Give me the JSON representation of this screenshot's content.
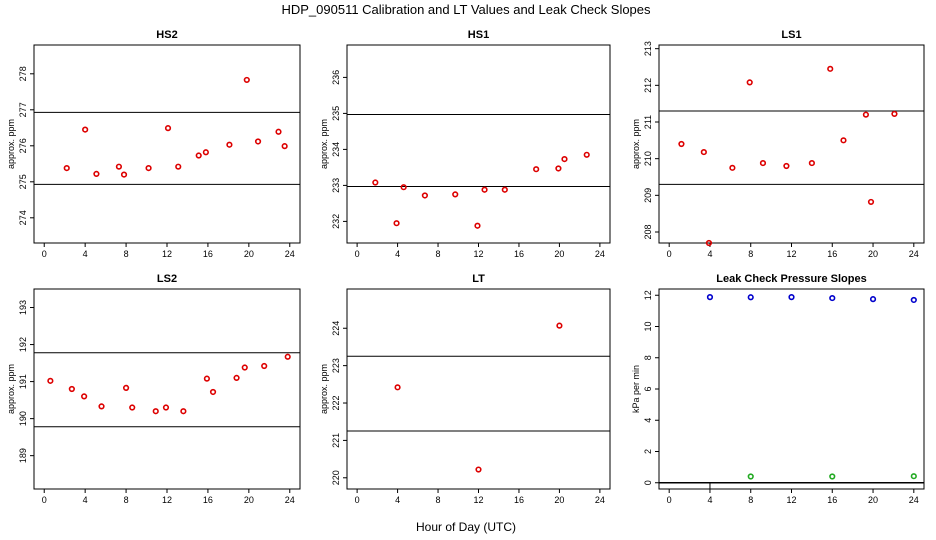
{
  "figure": {
    "title": "HDP_090511  Calibration and LT Values and Leak Check Slopes",
    "xlabel": "Hour of Day (UTC)"
  },
  "chart_data": [
    {
      "id": "hs2",
      "type": "scatter",
      "title": "HS2",
      "ylabel": "approx. ppm",
      "xlim": [
        -1,
        25
      ],
      "ylim": [
        273.3,
        278.8
      ],
      "xticks": [
        0,
        4,
        8,
        12,
        16,
        20,
        24
      ],
      "yticks": [
        274,
        275,
        276,
        277,
        278
      ],
      "hlines": [
        274.93,
        276.93
      ],
      "point_color": "#dd0000",
      "points": [
        [
          2.2,
          275.38
        ],
        [
          4.0,
          276.45
        ],
        [
          5.1,
          275.22
        ],
        [
          7.3,
          275.42
        ],
        [
          7.8,
          275.2
        ],
        [
          10.2,
          275.38
        ],
        [
          12.1,
          276.49
        ],
        [
          13.1,
          275.42
        ],
        [
          15.1,
          275.73
        ],
        [
          15.8,
          275.82
        ],
        [
          18.1,
          276.03
        ],
        [
          19.8,
          277.83
        ],
        [
          20.9,
          276.12
        ],
        [
          22.9,
          276.39
        ],
        [
          23.5,
          275.99
        ]
      ]
    },
    {
      "id": "hs1",
      "type": "scatter",
      "title": "HS1",
      "ylabel": "approx. ppm",
      "xlim": [
        -1,
        25
      ],
      "ylim": [
        231.4,
        236.9
      ],
      "xticks": [
        0,
        4,
        8,
        12,
        16,
        20,
        24
      ],
      "yticks": [
        232,
        233,
        234,
        235,
        236
      ],
      "hlines": [
        232.97,
        234.97
      ],
      "point_color": "#dd0000",
      "points": [
        [
          1.8,
          233.08
        ],
        [
          3.9,
          231.95
        ],
        [
          4.6,
          232.95
        ],
        [
          6.7,
          232.72
        ],
        [
          9.7,
          232.75
        ],
        [
          11.9,
          231.88
        ],
        [
          12.6,
          232.88
        ],
        [
          14.6,
          232.88
        ],
        [
          17.7,
          233.45
        ],
        [
          19.9,
          233.47
        ],
        [
          20.5,
          233.73
        ],
        [
          22.7,
          233.85
        ]
      ]
    },
    {
      "id": "ls1",
      "type": "scatter",
      "title": "LS1",
      "ylabel": "approx. ppm",
      "xlim": [
        -1,
        25
      ],
      "ylim": [
        207.7,
        213.1
      ],
      "xticks": [
        0,
        4,
        8,
        12,
        16,
        20,
        24
      ],
      "yticks": [
        208,
        209,
        210,
        211,
        212,
        213
      ],
      "hlines": [
        209.3,
        211.3
      ],
      "point_color": "#dd0000",
      "points": [
        [
          1.2,
          210.4
        ],
        [
          3.4,
          210.18
        ],
        [
          3.9,
          207.7
        ],
        [
          6.2,
          209.75
        ],
        [
          7.9,
          212.08
        ],
        [
          9.2,
          209.88
        ],
        [
          11.5,
          209.8
        ],
        [
          14.0,
          209.88
        ],
        [
          15.8,
          212.45
        ],
        [
          17.1,
          210.5
        ],
        [
          19.3,
          211.2
        ],
        [
          19.8,
          208.82
        ],
        [
          22.1,
          211.22
        ]
      ]
    },
    {
      "id": "ls2",
      "type": "scatter",
      "title": "LS2",
      "ylabel": "approx. ppm",
      "xlim": [
        -1,
        25
      ],
      "ylim": [
        188.1,
        193.5
      ],
      "xticks": [
        0,
        4,
        8,
        12,
        16,
        20,
        24
      ],
      "yticks": [
        189,
        190,
        191,
        192,
        193
      ],
      "hlines": [
        189.78,
        191.78
      ],
      "point_color": "#dd0000",
      "points": [
        [
          0.6,
          191.02
        ],
        [
          2.7,
          190.8
        ],
        [
          3.9,
          190.6
        ],
        [
          5.6,
          190.33
        ],
        [
          8.0,
          190.83
        ],
        [
          8.6,
          190.3
        ],
        [
          10.9,
          190.2
        ],
        [
          11.9,
          190.3
        ],
        [
          13.6,
          190.2
        ],
        [
          15.9,
          191.08
        ],
        [
          16.5,
          190.72
        ],
        [
          18.8,
          191.1
        ],
        [
          19.6,
          191.38
        ],
        [
          21.5,
          191.42
        ],
        [
          23.8,
          191.67
        ]
      ]
    },
    {
      "id": "lt",
      "type": "scatter",
      "title": "LT",
      "ylabel": "approx. ppm",
      "xlim": [
        -1,
        25
      ],
      "ylim": [
        219.7,
        225.05
      ],
      "xticks": [
        0,
        4,
        8,
        12,
        16,
        20,
        24
      ],
      "yticks": [
        220,
        221,
        222,
        223,
        224
      ],
      "hlines": [
        221.25,
        223.25
      ],
      "point_color": "#dd0000",
      "points": [
        [
          4.0,
          222.42
        ],
        [
          12.0,
          220.22
        ],
        [
          20.0,
          224.07
        ]
      ]
    },
    {
      "id": "leak",
      "type": "scatter",
      "title": "Leak Check Pressure Slopes",
      "ylabel": "kPa per min",
      "xlim": [
        -1,
        25
      ],
      "ylim": [
        -0.4,
        12.4
      ],
      "xticks": [
        0,
        4,
        8,
        12,
        16,
        20,
        24
      ],
      "yticks": [
        0,
        2,
        4,
        6,
        8,
        10,
        12
      ],
      "hlines": [
        0
      ],
      "hline_width": 1.6,
      "vline_at_x": 4,
      "series": [
        {
          "color": "#0000cc",
          "points": [
            [
              4,
              11.88
            ],
            [
              8,
              11.87
            ],
            [
              12,
              11.88
            ],
            [
              16,
              11.82
            ],
            [
              20,
              11.75
            ],
            [
              24,
              11.7
            ]
          ]
        },
        {
          "color": "#22aa22",
          "points": [
            [
              8,
              0.4
            ],
            [
              16,
              0.4
            ],
            [
              24,
              0.42
            ]
          ]
        }
      ]
    }
  ]
}
